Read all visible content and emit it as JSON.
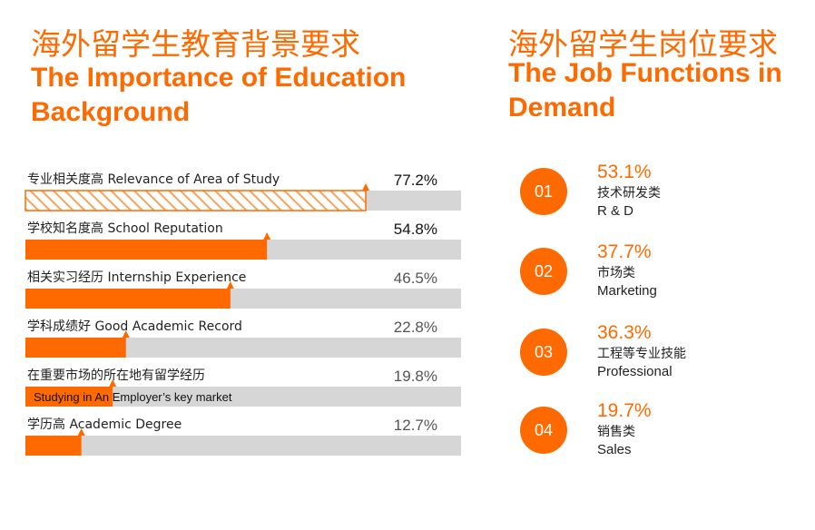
{
  "left": {
    "title_cn": "海外留学生教育背景要求",
    "title_en": "The Importance of Education Background"
  },
  "right": {
    "title_cn": "海外留学生岗位要求",
    "title_en": "The Job Functions in Demand",
    "jobs": [
      {
        "number": "01",
        "value": "53.1%",
        "label_cn": "技术研发类",
        "label_en": "R & D"
      },
      {
        "number": "02",
        "value": "37.7%",
        "label_cn": "市场类",
        "label_en": "Marketing"
      },
      {
        "number": "03",
        "value": "36.3%",
        "label_cn": "工程等专业技能",
        "label_en": "Professional"
      },
      {
        "number": "04",
        "value": "19.7%",
        "label_cn": "销售类",
        "label_en": "Sales"
      }
    ]
  },
  "colors": {
    "accent": "#ff6a00",
    "track": "#d6d6d6",
    "hatch": "#f7a35c",
    "value_dark": "#111111",
    "value_grey": "#555555"
  },
  "chart_data": [
    {
      "type": "bar",
      "orientation": "horizontal",
      "title": "The Importance of Education Background",
      "categories": [
        "专业相关度高 Relevance of Area of Study",
        "学校知名度高 School Reputation",
        "相关实习经历 Internship Experience",
        "学科成绩好 Good Academic Record",
        "在重要市场的所在地有留学经历",
        "学历高 Academic Degree"
      ],
      "category_sublabels": [
        "",
        "",
        "",
        "",
        "Studying in An Employer’s key market",
        ""
      ],
      "value_labels": [
        "77.2%",
        "54.8%",
        "46.5%",
        "22.8%",
        "19.8%",
        "12.7%"
      ],
      "values": [
        77.2,
        54.8,
        46.5,
        22.8,
        19.8,
        12.7
      ],
      "xlim": [
        0,
        100
      ],
      "hatched_first_bar": true
    },
    {
      "type": "table",
      "title": "The Job Functions in Demand",
      "categories": [
        "R & D",
        "Marketing",
        "Professional",
        "Sales"
      ],
      "values": [
        53.1,
        37.7,
        36.3,
        19.7
      ]
    }
  ]
}
